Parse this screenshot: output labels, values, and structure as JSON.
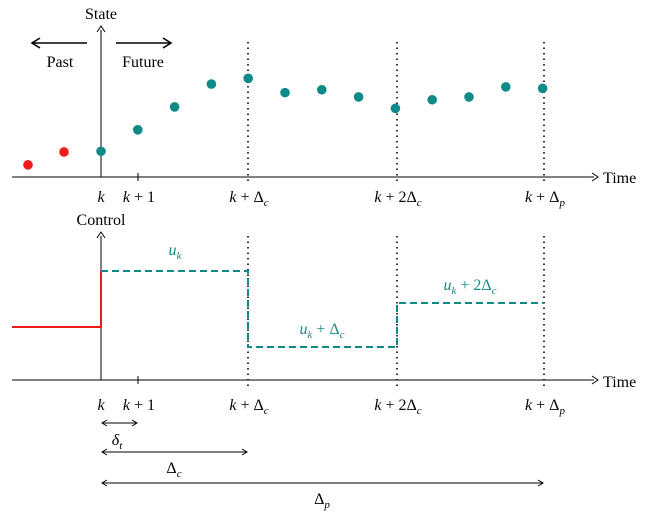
{
  "colors": {
    "past": "#ee1c1c",
    "future": "#0f8a87",
    "control_past": "#ee1c1c",
    "control_future": "#0f8a87",
    "axis": "#000000"
  },
  "state_plot": {
    "y_label": "State",
    "x_label": "Time",
    "past_label": "Past",
    "future_label": "Future",
    "past_arrow": "left-arrow",
    "future_arrow": "right-arrow",
    "past_points": [
      0.85,
      1.75
    ],
    "future_points": [
      1.8,
      3.3,
      4.9,
      6.5,
      6.9,
      5.9,
      6.1,
      5.6,
      4.8,
      5.4,
      5.6,
      6.3,
      6.2
    ]
  },
  "control_plot": {
    "y_label": "Control",
    "x_label": "Time",
    "u1_label": "u_k",
    "u2_label": "u_k + Δ_c",
    "u3_label": "u_k + 2Δ_c"
  },
  "ticks": {
    "k": "k",
    "k1": "k + 1",
    "kc": "k + Δ_c",
    "k2c": "k + 2Δ_c",
    "kp": "k + Δ_p"
  },
  "spans": {
    "delta_t": "δ_t",
    "delta_c": "Δ_c",
    "delta_p": "Δ_p"
  }
}
